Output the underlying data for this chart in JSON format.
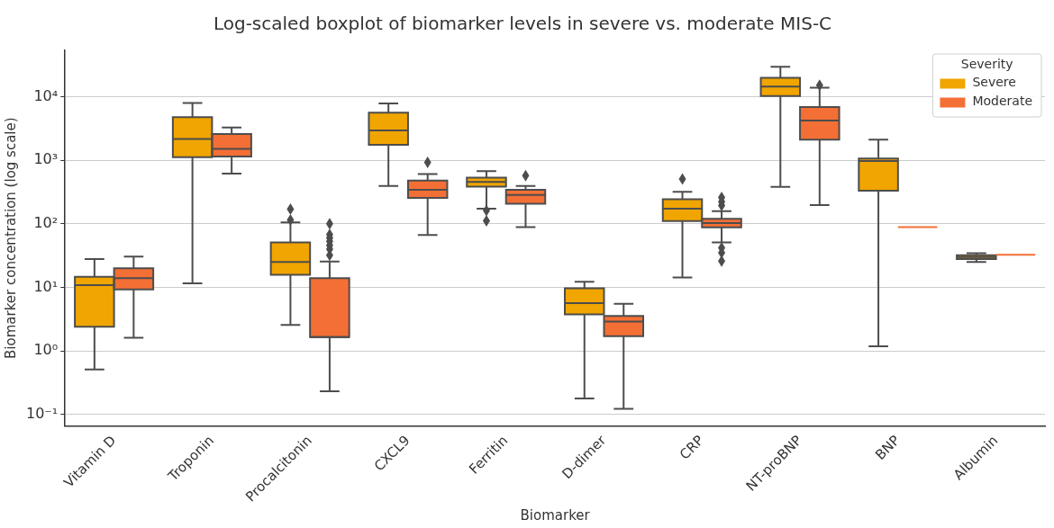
{
  "chart_data": {
    "type": "box",
    "title": "Log-scaled boxplot of biomarker levels in severe vs. moderate MIS-C",
    "xlabel": "Biomarker",
    "ylabel": "Biomarker concentration (log scale)",
    "legend_title": "Severity",
    "categories": [
      "Vitamin D",
      "Troponin",
      "Procalcitonin",
      "CXCL9",
      "Ferritin",
      "D-dimer",
      "CRP",
      "NT-proBNP",
      "BNP",
      "Albumin"
    ],
    "series": [
      {
        "name": "Severe",
        "color": "#f0a500",
        "boxes": [
          {
            "low": 0.51,
            "q1": 2.4,
            "median": 10.8,
            "q3": 14.6,
            "high": 28
          },
          {
            "low": 11.6,
            "q1": 1120,
            "median": 2180,
            "q3": 4780,
            "high": 8000
          },
          {
            "low": 2.56,
            "q1": 15.7,
            "median": 25,
            "q3": 51,
            "high": 105,
            "outliers": [
              115,
              170
            ]
          },
          {
            "low": 395,
            "q1": 1750,
            "median": 2970,
            "q3": 5650,
            "high": 7900
          },
          {
            "low": 173,
            "q1": 387,
            "median": 458,
            "q3": 536,
            "high": 676,
            "outliers": [
              112,
              163
            ]
          },
          {
            "low": 0.177,
            "q1": 3.74,
            "median": 5.65,
            "q3": 9.7,
            "high": 12.2
          },
          {
            "low": 14.3,
            "q1": 111,
            "median": 173,
            "q3": 245,
            "high": 320,
            "outliers": [
              508
            ]
          },
          {
            "low": 383,
            "q1": 10300,
            "median": 14500,
            "q3": 19900,
            "high": 29700
          },
          {
            "low": 1.18,
            "q1": 334,
            "median": 980,
            "q3": 1070,
            "high": 2120
          },
          {
            "low": 25,
            "q1": 28,
            "median": 30,
            "q3": 32,
            "high": 34.4
          }
        ]
      },
      {
        "name": "Moderate",
        "color": "#f46f35",
        "boxes": [
          {
            "low": 1.6,
            "q1": 9.3,
            "median": 13.9,
            "q3": 20,
            "high": 30.6
          },
          {
            "low": 620,
            "q1": 1150,
            "median": 1520,
            "q3": 2590,
            "high": 3300
          },
          {
            "low": 0.23,
            "q1": 1.64,
            "median": 1.64,
            "q3": 14,
            "high": 25.4,
            "outliers": [
              32,
              40,
              46,
              53,
              60,
              68,
              100
            ]
          },
          {
            "low": 67,
            "q1": 256,
            "median": 344,
            "q3": 482,
            "high": 610,
            "outliers": [
              930
            ]
          },
          {
            "low": 89,
            "q1": 207,
            "median": 285,
            "q3": 344,
            "high": 395,
            "outliers": [
              577
            ]
          },
          {
            "low": 0.122,
            "q1": 1.7,
            "median": 2.9,
            "q3": 3.55,
            "high": 5.5
          },
          {
            "low": 51,
            "q1": 88,
            "median": 103,
            "q3": 120,
            "high": 159,
            "outliers": [
              26,
              35,
              42,
              195,
              223,
              261
            ]
          },
          {
            "low": 197,
            "q1": 2120,
            "median": 4250,
            "q3": 6900,
            "high": 14000,
            "outliers": [
              15200
            ]
          },
          {
            "low": 89,
            "q1": 89,
            "median": 89,
            "q3": 89,
            "high": 89
          },
          {
            "low": 32.7,
            "q1": 32.7,
            "median": 32.7,
            "q3": 32.7,
            "high": 32.7
          }
        ]
      }
    ],
    "log": "y",
    "ylim": [
      0.066,
      54000
    ],
    "yticks": [
      {
        "value": 0.1,
        "label": "10⁻¹"
      },
      {
        "value": 1,
        "label": "10⁰"
      },
      {
        "value": 10,
        "label": "10¹"
      },
      {
        "value": 100,
        "label": "10²"
      },
      {
        "value": 1000,
        "label": "10³"
      },
      {
        "value": 10000,
        "label": "10⁴"
      }
    ],
    "grid": "y",
    "legend": "top right",
    "marker": "diamond"
  }
}
